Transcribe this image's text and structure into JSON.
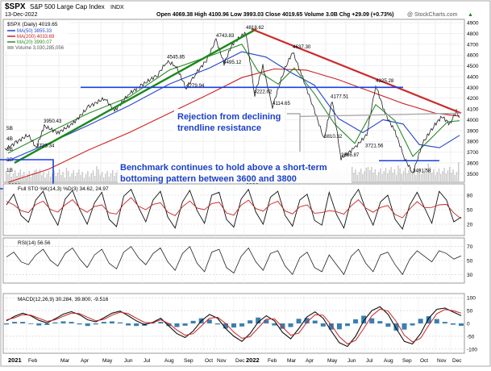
{
  "header": {
    "symbol": "$SPX",
    "name": "S&P 500 Large Cap Index",
    "exchange": "INDX",
    "date": "13-Dec-2022",
    "watermark": "@ StockCharts.com",
    "ohlc": "Open 4069.38  High 4100.96  Low 3993.03  Close 4019.65  Volume 3.0B  Chg +29.09 (+0.73%)",
    "chg_arrow": "▲"
  },
  "legend": {
    "price": "$SPX (Daily) 4019.65",
    "ma50": "MA(50) 3855.33",
    "ma200": "MA(200) 4033.69",
    "ma20": "MA(20) 3990.07",
    "volume": "Volume 3,030,285,056"
  },
  "annotations": {
    "rejection_line1": "Rejection from declining",
    "rejection_line2": "trendline resistance",
    "benchmark_line1": "Benchmark continues to hold above a short-term",
    "benchmark_line2": "bottoming pattern between 3600 and 3800"
  },
  "price_labels": [
    {
      "text": "4818.62",
      "x": 305,
      "y": 4818.62
    },
    {
      "text": "4743.83",
      "x": 268,
      "y": 4743.83
    },
    {
      "text": "4545.85",
      "x": 207,
      "y": 4545.85
    },
    {
      "text": "4495.12",
      "x": 277,
      "y": 4495.12
    },
    {
      "text": "4279.94",
      "x": 231,
      "y": 4279.94
    },
    {
      "text": "4222.62",
      "x": 315,
      "y": 4222.62
    },
    {
      "text": "4114.65",
      "x": 338,
      "y": 4114.65
    },
    {
      "text": "4637.30",
      "x": 363,
      "y": 4637.3
    },
    {
      "text": "4177.51",
      "x": 410,
      "y": 4177.51
    },
    {
      "text": "4325.28",
      "x": 466,
      "y": 4325.28
    },
    {
      "text": "3950.43",
      "x": 54,
      "y": 3950.43
    },
    {
      "text": "3723.34",
      "x": 45,
      "y": 3723.34
    },
    {
      "text": "3810.32",
      "x": 402,
      "y": 3810.32
    },
    {
      "text": "3721.56",
      "x": 453,
      "y": 3721.56
    },
    {
      "text": "3636.87",
      "x": 423,
      "y": 3636.87
    },
    {
      "text": "3491.58",
      "x": 512,
      "y": 3491.58
    }
  ],
  "indicators": {
    "stoch": {
      "label": "Full STO %K(14,3) %D(3) 34.62, 24.97",
      "axis": [
        {
          "v": 80,
          "t": "80"
        },
        {
          "v": 50,
          "t": "50"
        },
        {
          "v": 20,
          "t": "20"
        }
      ]
    },
    "rsi": {
      "label": "RSI(14) 56.56",
      "axis": [
        {
          "v": 70,
          "t": "70"
        },
        {
          "v": 50,
          "t": "50"
        },
        {
          "v": 30,
          "t": "30"
        }
      ]
    },
    "macd": {
      "label": "MACD(12,26,9) 30.284, 39.800, -9.516",
      "axis": [
        {
          "v": 100,
          "t": "100"
        },
        {
          "v": 50,
          "t": "50"
        },
        {
          "v": 0,
          "t": "0"
        },
        {
          "v": -50,
          "t": "-50"
        },
        {
          "v": -100,
          "t": "-100"
        }
      ]
    }
  },
  "volume_axis": [
    {
      "v": 5,
      "t": "5B"
    },
    {
      "v": 4,
      "t": "4B"
    },
    {
      "v": 3,
      "t": "3B"
    },
    {
      "v": 2,
      "t": "2B"
    },
    {
      "v": 1,
      "t": "1B"
    }
  ],
  "colors": {
    "ma200": "#cc2222",
    "ma50": "#2244cc",
    "ma20": "#2e8b2e",
    "trend_up": "#1a8a1a",
    "trend_down": "#cc2a2a",
    "support": "#1a3fe0",
    "annot": "#1a3fc8"
  },
  "chart_data": {
    "type": "line",
    "title": "$SPX S&P 500 Large Cap Index (Daily)",
    "x_months": [
      {
        "t": "2021",
        "x": 8,
        "bold": true
      },
      {
        "t": "Feb",
        "x": 33
      },
      {
        "t": "Mar",
        "x": 73
      },
      {
        "t": "Apr",
        "x": 98
      },
      {
        "t": "May",
        "x": 125
      },
      {
        "t": "Jun",
        "x": 152
      },
      {
        "t": "Jul",
        "x": 176
      },
      {
        "t": "Aug",
        "x": 202
      },
      {
        "t": "Sep",
        "x": 226
      },
      {
        "t": "Oct",
        "x": 252
      },
      {
        "t": "Nov",
        "x": 267
      },
      {
        "t": "Dec",
        "x": 290
      },
      {
        "t": "2022",
        "x": 303,
        "bold": true
      },
      {
        "t": "Feb",
        "x": 330
      },
      {
        "t": "Mar",
        "x": 354
      },
      {
        "t": "Apr",
        "x": 377
      },
      {
        "t": "May",
        "x": 404
      },
      {
        "t": "Jun",
        "x": 429
      },
      {
        "t": "Jul",
        "x": 452
      },
      {
        "t": "Aug",
        "x": 474
      },
      {
        "t": "Sep",
        "x": 497
      },
      {
        "t": "Oct",
        "x": 519
      },
      {
        "t": "Nov",
        "x": 540
      },
      {
        "t": "Dec",
        "x": 559
      }
    ],
    "price_axis": [
      4900,
      4800,
      4700,
      4600,
      4500,
      4400,
      4300,
      4200,
      4100,
      4000,
      3900,
      3800,
      3700,
      3600,
      3500
    ],
    "ylim": [
      3420,
      4930
    ],
    "price_path": [
      [
        6,
        3720
      ],
      [
        20,
        3790
      ],
      [
        35,
        3860
      ],
      [
        45,
        3740
      ],
      [
        55,
        3940
      ],
      [
        72,
        3880
      ],
      [
        90,
        3960
      ],
      [
        110,
        4120
      ],
      [
        130,
        4200
      ],
      [
        142,
        4080
      ],
      [
        160,
        4240
      ],
      [
        176,
        4320
      ],
      [
        196,
        4420
      ],
      [
        207,
        4540
      ],
      [
        218,
        4500
      ],
      [
        231,
        4290
      ],
      [
        242,
        4420
      ],
      [
        256,
        4550
      ],
      [
        268,
        4740
      ],
      [
        278,
        4520
      ],
      [
        288,
        4700
      ],
      [
        305,
        4810
      ],
      [
        316,
        4230
      ],
      [
        326,
        4500
      ],
      [
        338,
        4120
      ],
      [
        352,
        4450
      ],
      [
        363,
        4630
      ],
      [
        374,
        4420
      ],
      [
        388,
        4130
      ],
      [
        402,
        3820
      ],
      [
        412,
        4180
      ],
      [
        423,
        3640
      ],
      [
        440,
        3740
      ],
      [
        455,
        3860
      ],
      [
        466,
        4320
      ],
      [
        478,
        4050
      ],
      [
        490,
        3890
      ],
      [
        502,
        3640
      ],
      [
        512,
        3500
      ],
      [
        524,
        3780
      ],
      [
        538,
        3940
      ],
      [
        548,
        4030
      ],
      [
        558,
        3960
      ],
      [
        566,
        4080
      ],
      [
        570,
        4019
      ]
    ],
    "ma200_path": [
      [
        10,
        3420
      ],
      [
        60,
        3540
      ],
      [
        110,
        3720
      ],
      [
        160,
        3880
      ],
      [
        210,
        4060
      ],
      [
        260,
        4240
      ],
      [
        300,
        4390
      ],
      [
        340,
        4470
      ],
      [
        380,
        4460
      ],
      [
        420,
        4370
      ],
      [
        460,
        4260
      ],
      [
        500,
        4150
      ],
      [
        540,
        4060
      ],
      [
        570,
        4034
      ]
    ],
    "ma50_path": [
      [
        10,
        3620
      ],
      [
        60,
        3780
      ],
      [
        110,
        3950
      ],
      [
        160,
        4130
      ],
      [
        210,
        4330
      ],
      [
        260,
        4480
      ],
      [
        300,
        4630
      ],
      [
        330,
        4580
      ],
      [
        360,
        4440
      ],
      [
        390,
        4320
      ],
      [
        420,
        4010
      ],
      [
        450,
        3880
      ],
      [
        475,
        4000
      ],
      [
        500,
        3960
      ],
      [
        520,
        3770
      ],
      [
        545,
        3740
      ],
      [
        570,
        3855
      ]
    ],
    "ma20_path": [
      [
        10,
        3690
      ],
      [
        60,
        3880
      ],
      [
        110,
        4060
      ],
      [
        160,
        4210
      ],
      [
        210,
        4460
      ],
      [
        260,
        4590
      ],
      [
        300,
        4700
      ],
      [
        320,
        4450
      ],
      [
        345,
        4330
      ],
      [
        365,
        4480
      ],
      [
        390,
        4240
      ],
      [
        415,
        3960
      ],
      [
        440,
        3780
      ],
      [
        466,
        4140
      ],
      [
        490,
        3990
      ],
      [
        512,
        3660
      ],
      [
        535,
        3830
      ],
      [
        555,
        3980
      ],
      [
        570,
        3990
      ]
    ],
    "uptrend_line": [
      [
        18,
        3600
      ],
      [
        318,
        4840
      ]
    ],
    "downtrend_line": [
      [
        312,
        4840
      ],
      [
        572,
        4060
      ]
    ],
    "support_4300": [
      [
        100,
        4300
      ],
      [
        500,
        4300
      ]
    ],
    "support_3620": [
      [
        470,
        3620
      ],
      [
        545,
        3620
      ]
    ],
    "grey_line": [
      [
        372,
        4030
      ],
      [
        572,
        4060
      ]
    ],
    "volume_bars_note": "daily volume bars along chart bottom, typically 3-5B",
    "stoch_k": [
      60,
      82,
      38,
      24,
      70,
      88,
      45,
      18,
      72,
      90,
      50,
      20,
      64,
      86,
      30,
      15,
      78,
      92,
      55,
      25,
      70,
      88,
      35,
      12,
      66,
      90,
      48,
      22,
      80,
      86,
      30,
      14,
      72,
      92,
      45,
      20,
      76,
      88,
      38,
      16,
      70,
      82,
      28,
      18,
      86,
      40,
      12,
      70,
      92,
      50,
      18,
      66,
      80,
      30,
      10,
      60,
      86,
      54,
      22,
      88,
      70,
      25,
      34.62
    ],
    "rsi": [
      55,
      62,
      48,
      44,
      58,
      66,
      50,
      42,
      60,
      68,
      52,
      40,
      58,
      66,
      46,
      38,
      62,
      70,
      54,
      44,
      60,
      68,
      48,
      36,
      60,
      70,
      46,
      34,
      62,
      66,
      40,
      32,
      56,
      68,
      48,
      36,
      60,
      64,
      42,
      30,
      54,
      62,
      40,
      34,
      58,
      44,
      30,
      56,
      66,
      46,
      34,
      58,
      62,
      44,
      30,
      52,
      64,
      56,
      48,
      64,
      60,
      52,
      56.56
    ],
    "macd": [
      10,
      28,
      40,
      30,
      12,
      2,
      18,
      36,
      46,
      34,
      14,
      6,
      22,
      40,
      48,
      30,
      10,
      -5,
      4,
      20,
      -10,
      -40,
      -55,
      -30,
      10,
      35,
      20,
      -20,
      -50,
      -70,
      -40,
      5,
      30,
      10,
      -35,
      -60,
      -20,
      25,
      45,
      20,
      -30,
      -75,
      -90,
      -50,
      10,
      50,
      65,
      35,
      -20,
      -70,
      -80,
      -40,
      20,
      55,
      60,
      45,
      30.284
    ],
    "macd_signal": [
      14,
      22,
      34,
      32,
      20,
      8,
      14,
      28,
      40,
      38,
      24,
      10,
      16,
      32,
      44,
      38,
      20,
      4,
      2,
      14,
      0,
      -26,
      -46,
      -40,
      -10,
      20,
      24,
      0,
      -34,
      -58,
      -52,
      -18,
      16,
      18,
      -14,
      -46,
      -38,
      4,
      34,
      32,
      -6,
      -52,
      -80,
      -66,
      -20,
      30,
      56,
      48,
      8,
      -46,
      -72,
      -58,
      -8,
      38,
      54,
      50,
      39.8
    ]
  }
}
